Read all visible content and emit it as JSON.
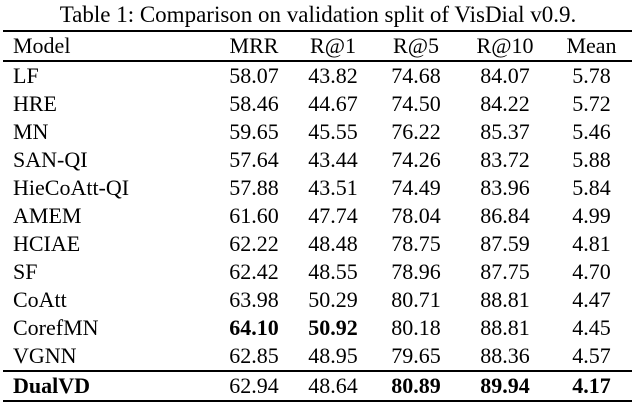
{
  "caption": "Table 1: Comparison on validation split of VisDial v0.9.",
  "table": {
    "columns": [
      "Model",
      "MRR",
      "R@1",
      "R@5",
      "R@10",
      "Mean"
    ],
    "rows": [
      {
        "model": "LF",
        "bold_model": false,
        "values": [
          "58.07",
          "43.82",
          "74.68",
          "84.07",
          "5.78"
        ],
        "bold": [
          false,
          false,
          false,
          false,
          false
        ],
        "separator_above": false
      },
      {
        "model": "HRE",
        "bold_model": false,
        "values": [
          "58.46",
          "44.67",
          "74.50",
          "84.22",
          "5.72"
        ],
        "bold": [
          false,
          false,
          false,
          false,
          false
        ],
        "separator_above": false
      },
      {
        "model": "MN",
        "bold_model": false,
        "values": [
          "59.65",
          "45.55",
          "76.22",
          "85.37",
          "5.46"
        ],
        "bold": [
          false,
          false,
          false,
          false,
          false
        ],
        "separator_above": false
      },
      {
        "model": "SAN-QI",
        "bold_model": false,
        "values": [
          "57.64",
          "43.44",
          "74.26",
          "83.72",
          "5.88"
        ],
        "bold": [
          false,
          false,
          false,
          false,
          false
        ],
        "separator_above": false
      },
      {
        "model": "HieCoAtt-QI",
        "bold_model": false,
        "values": [
          "57.88",
          "43.51",
          "74.49",
          "83.96",
          "5.84"
        ],
        "bold": [
          false,
          false,
          false,
          false,
          false
        ],
        "separator_above": false
      },
      {
        "model": "AMEM",
        "bold_model": false,
        "values": [
          "61.60",
          "47.74",
          "78.04",
          "86.84",
          "4.99"
        ],
        "bold": [
          false,
          false,
          false,
          false,
          false
        ],
        "separator_above": false
      },
      {
        "model": "HCIAE",
        "bold_model": false,
        "values": [
          "62.22",
          "48.48",
          "78.75",
          "87.59",
          "4.81"
        ],
        "bold": [
          false,
          false,
          false,
          false,
          false
        ],
        "separator_above": false
      },
      {
        "model": "SF",
        "bold_model": false,
        "values": [
          "62.42",
          "48.55",
          "78.96",
          "87.75",
          "4.70"
        ],
        "bold": [
          false,
          false,
          false,
          false,
          false
        ],
        "separator_above": false
      },
      {
        "model": "CoAtt",
        "bold_model": false,
        "values": [
          "63.98",
          "50.29",
          "80.71",
          "88.81",
          "4.47"
        ],
        "bold": [
          false,
          false,
          false,
          false,
          false
        ],
        "separator_above": false
      },
      {
        "model": "CorefMN",
        "bold_model": false,
        "values": [
          "64.10",
          "50.92",
          "80.18",
          "88.81",
          "4.45"
        ],
        "bold": [
          true,
          true,
          false,
          false,
          false
        ],
        "separator_above": false
      },
      {
        "model": "VGNN",
        "bold_model": false,
        "values": [
          "62.85",
          "48.95",
          "79.65",
          "88.36",
          "4.57"
        ],
        "bold": [
          false,
          false,
          false,
          false,
          false
        ],
        "separator_above": false
      },
      {
        "model": "DualVD",
        "bold_model": true,
        "values": [
          "62.94",
          "48.64",
          "80.89",
          "89.94",
          "4.17"
        ],
        "bold": [
          false,
          false,
          true,
          true,
          true
        ],
        "separator_above": true
      }
    ]
  }
}
